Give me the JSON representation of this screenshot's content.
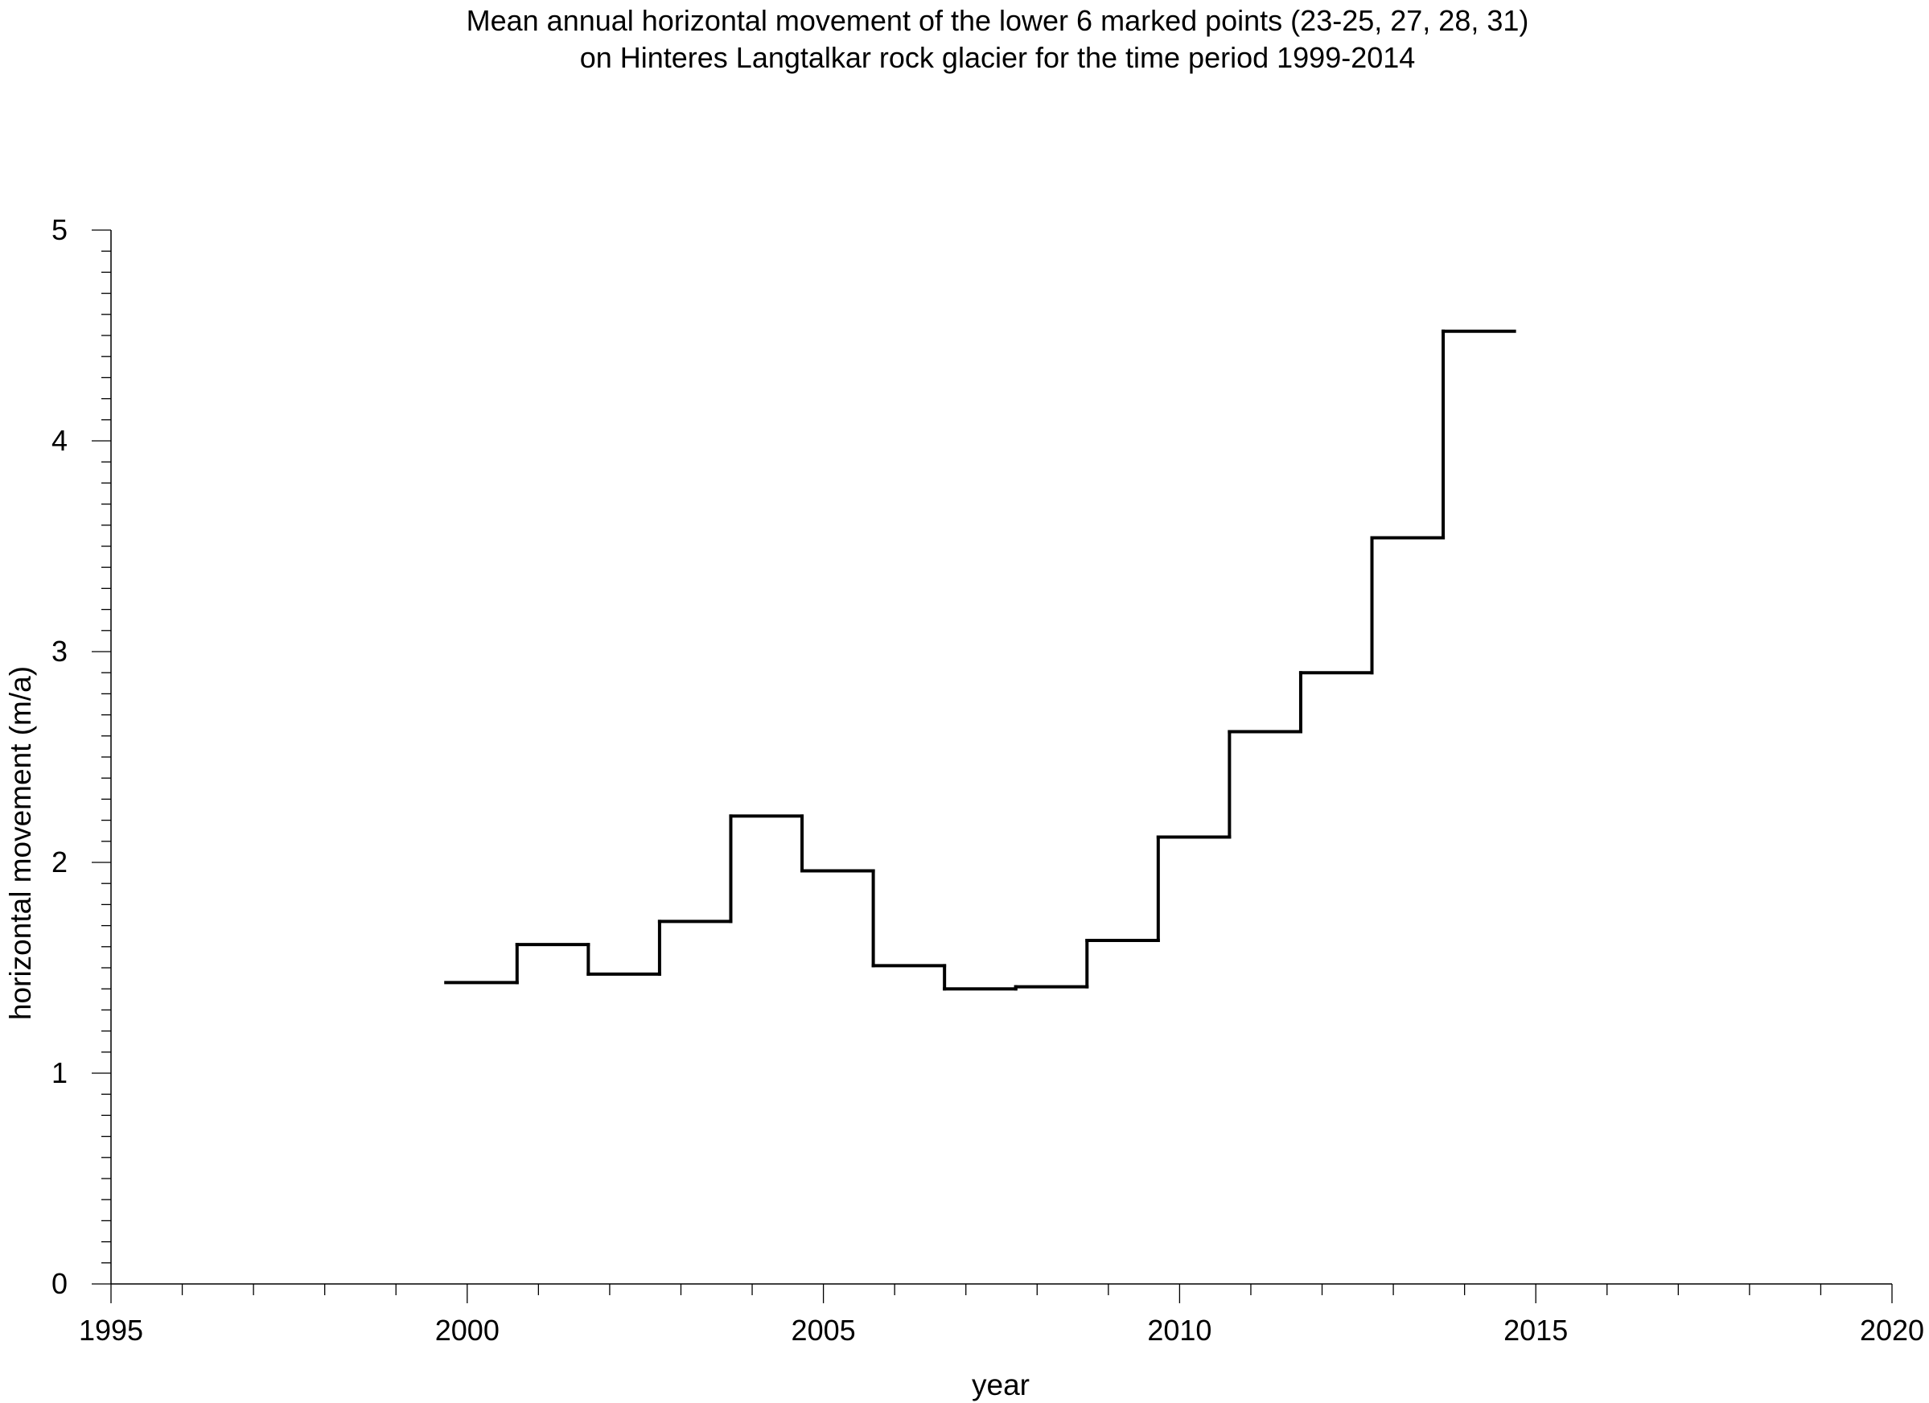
{
  "chart_data": {
    "type": "line",
    "step": true,
    "title": [
      "Mean annual horizontal movement of the lower 6 marked points (23-25, 27, 28, 31)",
      "on Hinteres Langtalkar rock glacier for the time period 1999-2014"
    ],
    "xlabel": "year",
    "ylabel": "horizontal movement (m/a)",
    "xlim": [
      1995,
      2020
    ],
    "ylim": [
      0,
      5
    ],
    "x_ticks": [
      "1995",
      "2000",
      "2005",
      "2010",
      "2015",
      "2020"
    ],
    "y_ticks": [
      "0",
      "1",
      "2",
      "3",
      "4",
      "5"
    ],
    "x_minor_step": 1,
    "y_minor_step": 0.1,
    "grid": false,
    "line_color": "#000000",
    "series": [
      {
        "segments": [
          {
            "x0": 1999.7,
            "x1": 2000.7,
            "value": 1.43
          },
          {
            "x0": 2000.7,
            "x1": 2001.7,
            "value": 1.61
          },
          {
            "x0": 2001.7,
            "x1": 2002.7,
            "value": 1.47
          },
          {
            "x0": 2002.7,
            "x1": 2003.7,
            "value": 1.72
          },
          {
            "x0": 2003.7,
            "x1": 2004.7,
            "value": 2.22
          },
          {
            "x0": 2004.7,
            "x1": 2005.7,
            "value": 1.96
          },
          {
            "x0": 2005.7,
            "x1": 2006.7,
            "value": 1.51
          },
          {
            "x0": 2006.7,
            "x1": 2007.7,
            "value": 1.4
          },
          {
            "x0": 2007.7,
            "x1": 2008.7,
            "value": 1.41
          },
          {
            "x0": 2008.7,
            "x1": 2009.7,
            "value": 1.63
          },
          {
            "x0": 2009.7,
            "x1": 2010.7,
            "value": 2.12
          },
          {
            "x0": 2010.7,
            "x1": 2011.7,
            "value": 2.62
          },
          {
            "x0": 2011.7,
            "x1": 2012.7,
            "value": 2.9
          },
          {
            "x0": 2012.7,
            "x1": 2013.7,
            "value": 3.54
          },
          {
            "x0": 2013.7,
            "x1": 2014.7,
            "value": 4.52
          }
        ]
      }
    ]
  }
}
